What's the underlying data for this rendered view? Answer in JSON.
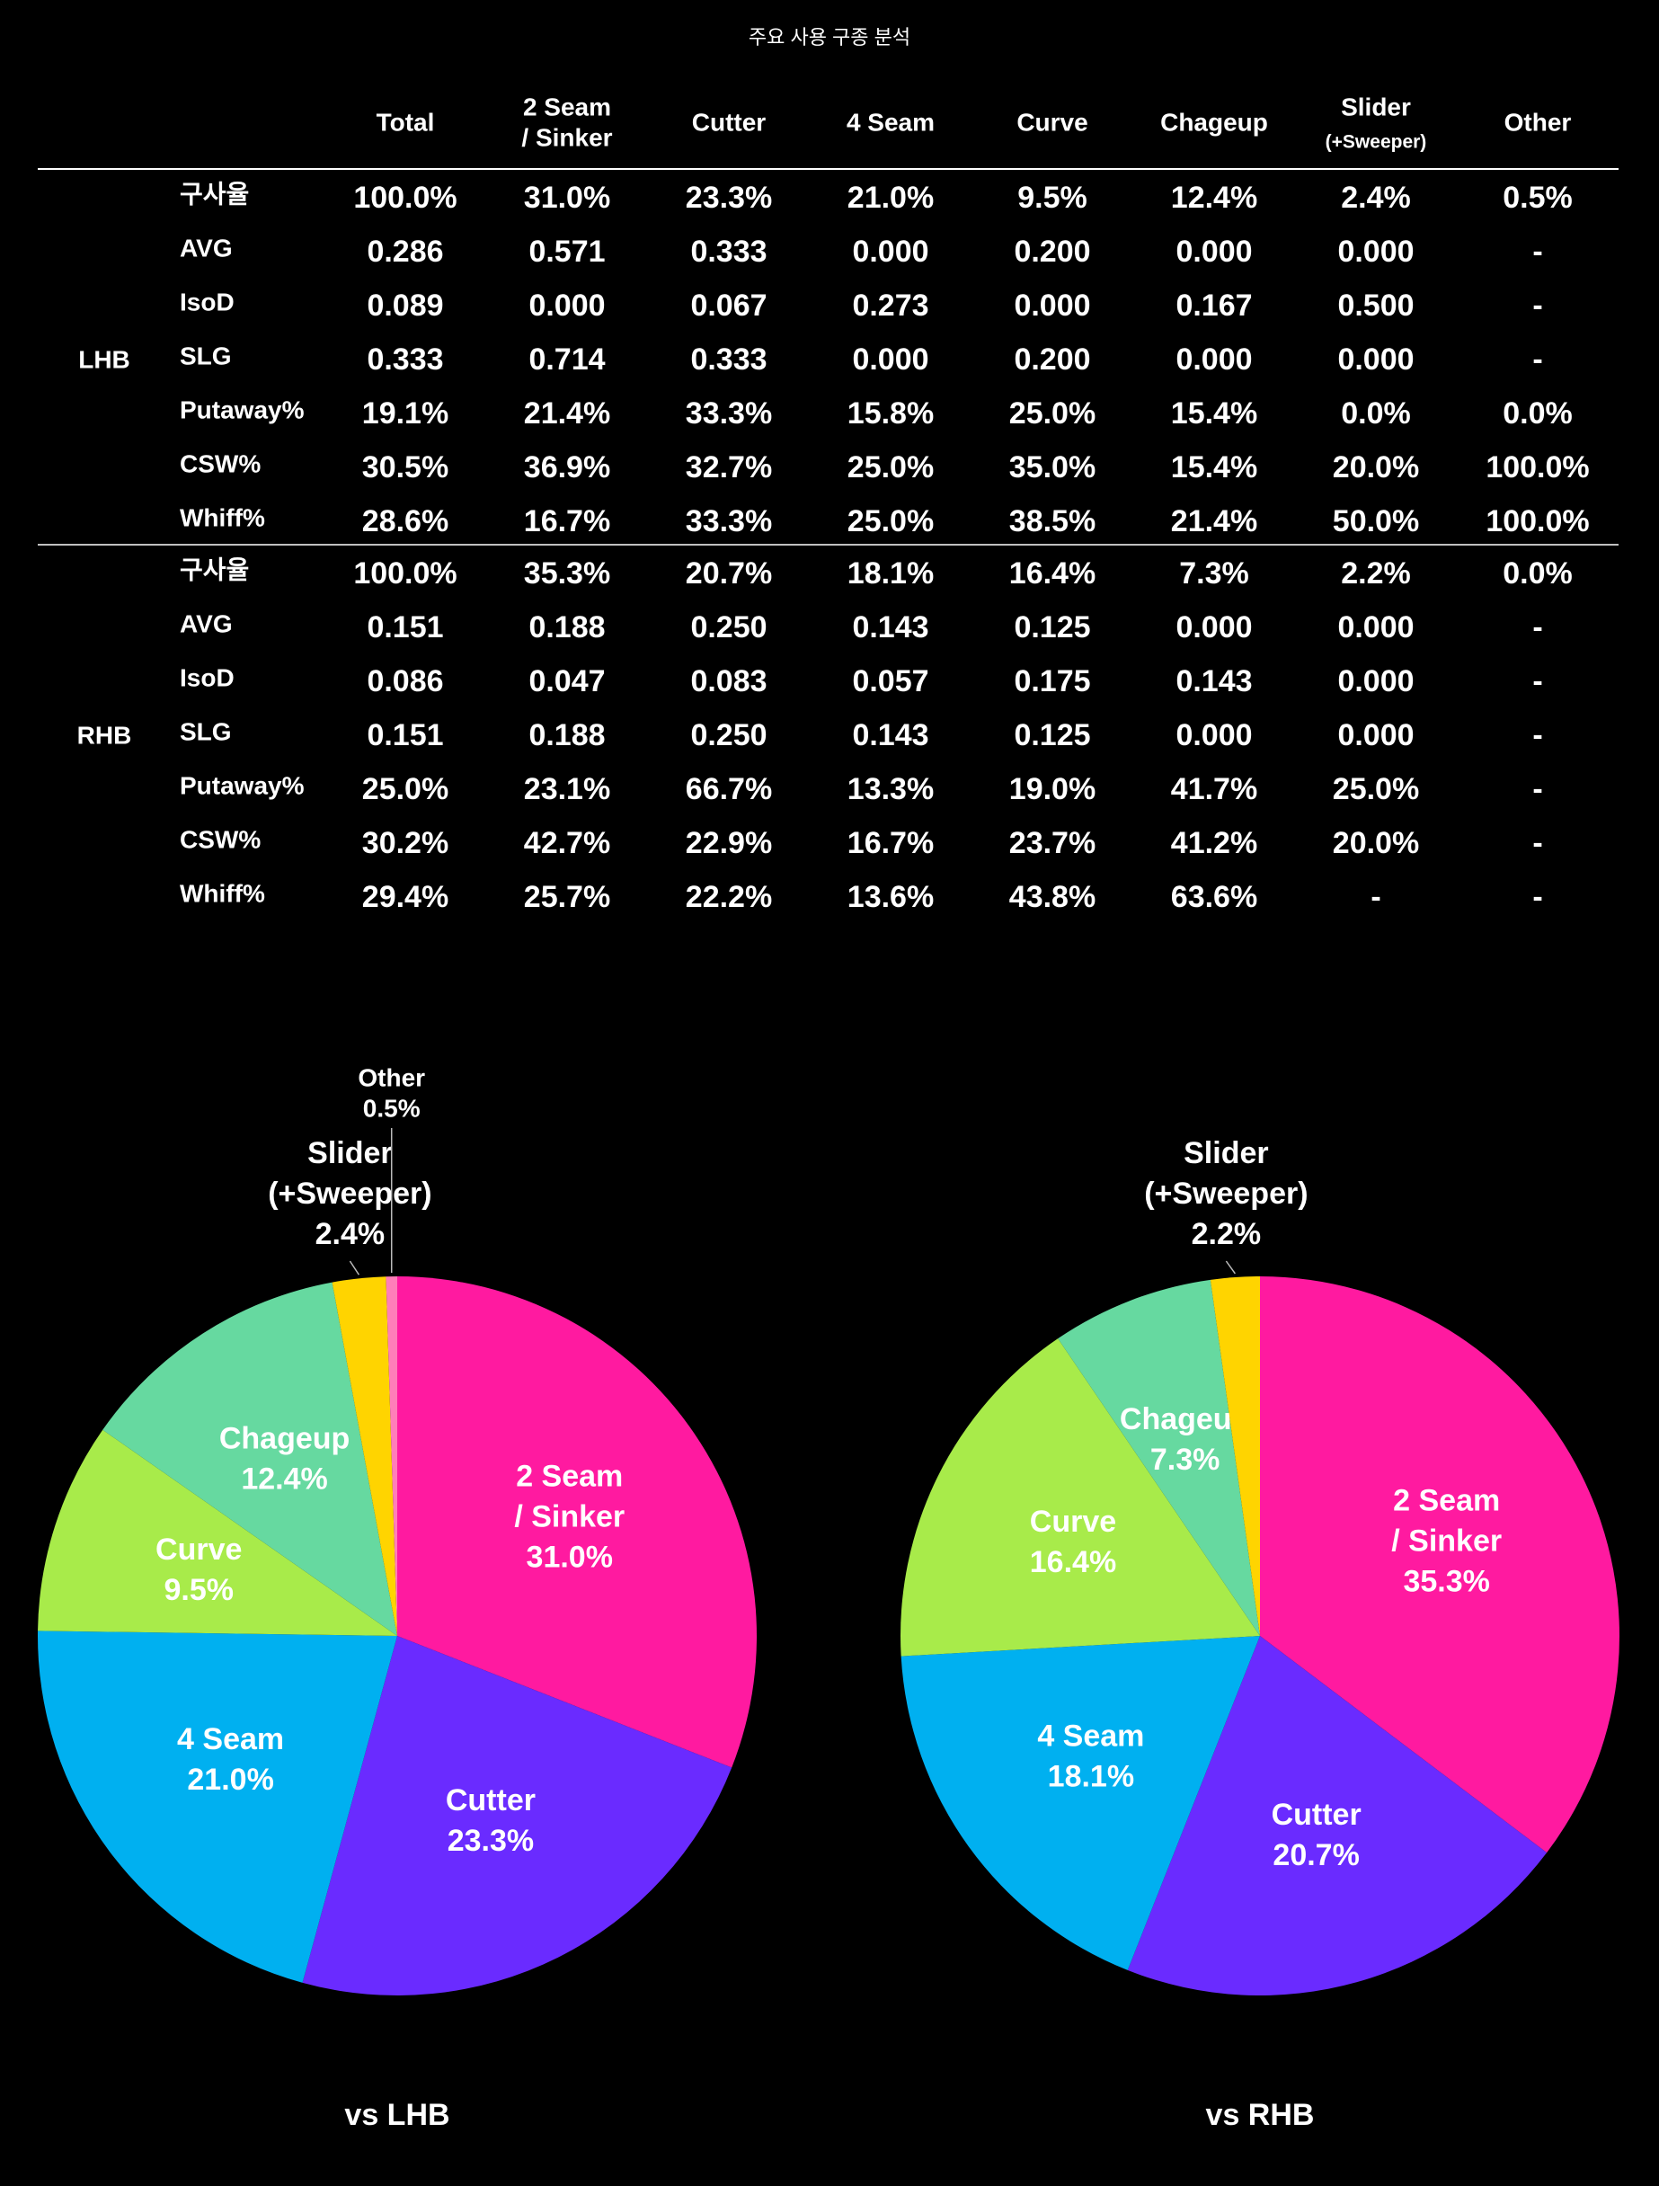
{
  "title": "주요 사용 구종 분석",
  "table": {
    "columns": [
      [
        "Total"
      ],
      [
        "2 Seam",
        "/ Sinker"
      ],
      [
        "Cutter"
      ],
      [
        "4 Seam"
      ],
      [
        "Curve"
      ],
      [
        "Chageup"
      ],
      [
        "Slider",
        "(+Sweeper)"
      ],
      [
        "Other"
      ]
    ],
    "groups": [
      {
        "name": "LHB",
        "rows": [
          {
            "label": "구사율",
            "cells": [
              "100.0%",
              "31.0%",
              "23.3%",
              "21.0%",
              "9.5%",
              "12.4%",
              "2.4%",
              "0.5%"
            ]
          },
          {
            "label": "AVG",
            "cells": [
              "0.286",
              "0.571",
              "0.333",
              "0.000",
              "0.200",
              "0.000",
              "0.000",
              "-"
            ]
          },
          {
            "label": "IsoD",
            "cells": [
              "0.089",
              "0.000",
              "0.067",
              "0.273",
              "0.000",
              "0.167",
              "0.500",
              "-"
            ]
          },
          {
            "label": "SLG",
            "cells": [
              "0.333",
              "0.714",
              "0.333",
              "0.000",
              "0.200",
              "0.000",
              "0.000",
              "-"
            ]
          },
          {
            "label": "Putaway%",
            "cells": [
              "19.1%",
              "21.4%",
              "33.3%",
              "15.8%",
              "25.0%",
              "15.4%",
              "0.0%",
              "0.0%"
            ]
          },
          {
            "label": "CSW%",
            "cells": [
              "30.5%",
              "36.9%",
              "32.7%",
              "25.0%",
              "35.0%",
              "15.4%",
              "20.0%",
              "100.0%"
            ]
          },
          {
            "label": "Whiff%",
            "cells": [
              "28.6%",
              "16.7%",
              "33.3%",
              "25.0%",
              "38.5%",
              "21.4%",
              "50.0%",
              "100.0%"
            ]
          }
        ]
      },
      {
        "name": "RHB",
        "rows": [
          {
            "label": "구사율",
            "cells": [
              "100.0%",
              "35.3%",
              "20.7%",
              "18.1%",
              "16.4%",
              "7.3%",
              "2.2%",
              "0.0%"
            ]
          },
          {
            "label": "AVG",
            "cells": [
              "0.151",
              "0.188",
              "0.250",
              "0.143",
              "0.125",
              "0.000",
              "0.000",
              "-"
            ]
          },
          {
            "label": "IsoD",
            "cells": [
              "0.086",
              "0.047",
              "0.083",
              "0.057",
              "0.175",
              "0.143",
              "0.000",
              "-"
            ]
          },
          {
            "label": "SLG",
            "cells": [
              "0.151",
              "0.188",
              "0.250",
              "0.143",
              "0.125",
              "0.000",
              "0.000",
              "-"
            ]
          },
          {
            "label": "Putaway%",
            "cells": [
              "25.0%",
              "23.1%",
              "66.7%",
              "13.3%",
              "19.0%",
              "41.7%",
              "25.0%",
              "-"
            ]
          },
          {
            "label": "CSW%",
            "cells": [
              "30.2%",
              "42.7%",
              "22.9%",
              "16.7%",
              "23.7%",
              "41.2%",
              "20.0%",
              "-"
            ]
          },
          {
            "label": "Whiff%",
            "cells": [
              "29.4%",
              "25.7%",
              "22.2%",
              "13.6%",
              "43.8%",
              "63.6%",
              "-",
              "-"
            ]
          }
        ]
      }
    ]
  },
  "chart_data": [
    {
      "type": "pie",
      "title": "vs LHB",
      "categories": [
        [
          "2 Seam",
          "/ Sinker"
        ],
        [
          "Cutter"
        ],
        [
          "4 Seam"
        ],
        [
          "Curve"
        ],
        [
          "Chageup"
        ],
        [
          "Slider",
          "(+Sweeper)"
        ],
        [
          "Other"
        ]
      ],
      "values": [
        31.0,
        23.3,
        21.0,
        9.5,
        12.4,
        2.4,
        0.5
      ],
      "value_labels": [
        "31.0%",
        "23.3%",
        "21.0%",
        "9.5%",
        "12.4%",
        "2.4%",
        "0.5%"
      ],
      "colors": [
        "#ff1aa0",
        "#6a2bff",
        "#00b0f0",
        "#a8eb4a",
        "#66d9a0",
        "#ffd400",
        "#ff7eb9"
      ]
    },
    {
      "type": "pie",
      "title": "vs RHB",
      "categories": [
        [
          "2 Seam",
          "/ Sinker"
        ],
        [
          "Cutter"
        ],
        [
          "4 Seam"
        ],
        [
          "Curve"
        ],
        [
          "Chageup"
        ],
        [
          "Slider",
          "(+Sweeper)"
        ]
      ],
      "values": [
        35.3,
        20.7,
        18.1,
        16.4,
        7.3,
        2.2
      ],
      "value_labels": [
        "35.3%",
        "20.7%",
        "18.1%",
        "16.4%",
        "7.3%",
        "2.2%"
      ],
      "colors": [
        "#ff1aa0",
        "#6a2bff",
        "#00b0f0",
        "#a8eb4a",
        "#66d9a0",
        "#ffd400"
      ]
    }
  ]
}
